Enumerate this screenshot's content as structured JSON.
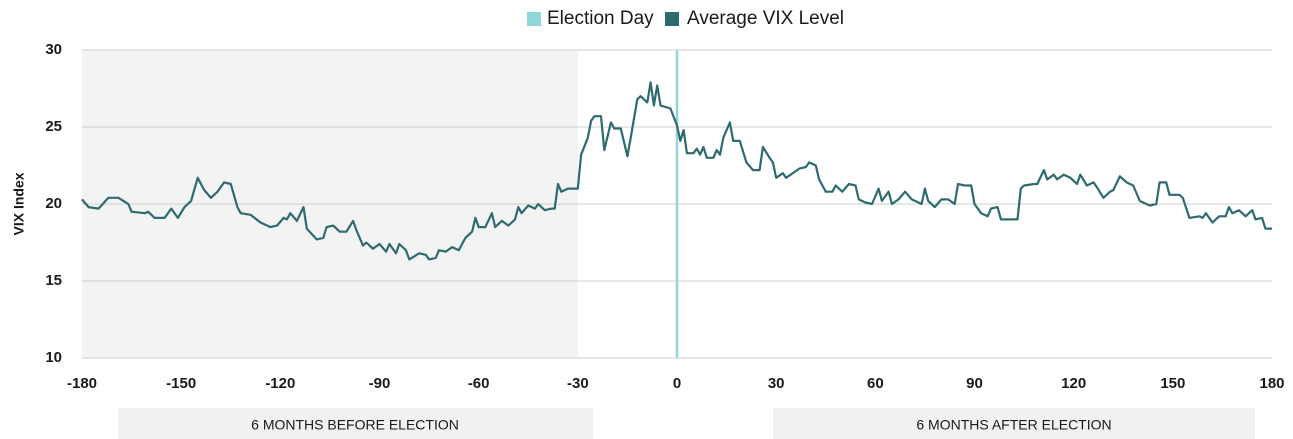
{
  "chart_data": {
    "type": "line",
    "x": [
      -180,
      -178,
      -175,
      -172,
      -169,
      -166,
      -165,
      -161,
      -160,
      -158,
      -155,
      -153,
      -151,
      -149,
      -147,
      -145,
      -143,
      -141,
      -139,
      -137,
      -135,
      -133,
      -132,
      -129,
      -126,
      -123,
      -121,
      -119,
      -118,
      -117,
      -115,
      -113,
      -112,
      -109,
      -107,
      -106,
      -104,
      -102,
      -100,
      -98,
      -97,
      -95,
      -94,
      -92,
      -90,
      -88,
      -87,
      -85,
      -84,
      -82,
      -81,
      -78,
      -76,
      -75,
      -73,
      -72,
      -70,
      -68,
      -66,
      -64,
      -62,
      -61,
      -60,
      -58,
      -56,
      -55,
      -53,
      -51,
      -49,
      -48,
      -47,
      -45,
      -43,
      -42,
      -40,
      -38,
      -37,
      -36,
      -35,
      -33,
      -30,
      -29,
      -27,
      -26,
      -25,
      -23,
      -22,
      -20,
      -19,
      -17,
      -15,
      -14,
      -12,
      -11,
      -9,
      -8,
      -7,
      -6,
      -5,
      -2,
      0,
      1,
      2,
      3,
      5,
      6,
      7,
      8,
      9,
      11,
      12,
      13,
      14,
      15,
      16,
      17,
      19,
      21,
      23,
      25,
      26,
      28,
      29,
      30,
      32,
      33,
      35,
      37,
      39,
      40,
      42,
      43,
      45,
      47,
      48,
      50,
      52,
      54,
      55,
      57,
      59,
      61,
      62,
      64,
      65,
      67,
      69,
      71,
      72,
      74,
      75,
      76,
      78,
      80,
      82,
      84,
      85,
      87,
      89,
      90,
      92,
      94,
      95,
      97,
      98,
      100,
      103,
      104,
      105,
      108,
      109,
      111,
      112,
      114,
      115,
      117,
      119,
      121,
      122,
      124,
      126,
      127,
      129,
      131,
      132,
      134,
      136,
      138,
      140,
      142,
      143,
      145,
      146,
      148,
      149,
      152,
      153,
      155,
      158,
      159,
      160,
      162,
      164,
      166,
      167,
      168,
      170,
      172,
      174,
      175,
      177,
      178,
      180
    ],
    "series": [
      {
        "name": "Average VIX Level",
        "color": "#2e6b6e",
        "values": [
          20.3,
          19.8,
          19.7,
          20.4,
          20.4,
          20.0,
          19.5,
          19.4,
          19.5,
          19.1,
          19.1,
          19.7,
          19.1,
          19.8,
          20.2,
          21.7,
          20.9,
          20.4,
          20.8,
          21.4,
          21.3,
          19.8,
          19.4,
          19.3,
          18.8,
          18.5,
          18.6,
          19.1,
          19.0,
          19.4,
          18.9,
          19.8,
          18.4,
          17.7,
          17.8,
          18.5,
          18.6,
          18.2,
          18.2,
          18.9,
          18.3,
          17.3,
          17.5,
          17.1,
          17.4,
          16.9,
          17.4,
          16.8,
          17.4,
          17.0,
          16.4,
          16.8,
          16.7,
          16.4,
          16.5,
          17.0,
          16.9,
          17.2,
          17.0,
          17.8,
          18.2,
          19.1,
          18.5,
          18.5,
          19.4,
          18.5,
          18.9,
          18.6,
          19.0,
          19.8,
          19.4,
          19.9,
          19.7,
          20.0,
          19.6,
          19.7,
          19.7,
          21.3,
          20.8,
          21.0,
          21.0,
          23.2,
          24.3,
          25.4,
          25.7,
          25.7,
          23.5,
          25.3,
          24.9,
          24.9,
          23.1,
          24.3,
          26.8,
          27.0,
          26.6,
          27.9,
          26.4,
          27.7,
          26.4,
          26.2,
          25.1,
          24.1,
          24.8,
          23.3,
          23.3,
          23.6,
          23.2,
          23.7,
          23.0,
          23.0,
          23.5,
          23.2,
          24.3,
          24.8,
          25.3,
          24.1,
          24.1,
          22.7,
          22.2,
          22.2,
          23.7,
          23.0,
          22.7,
          21.7,
          22.0,
          21.7,
          22.0,
          22.3,
          22.4,
          22.7,
          22.5,
          21.6,
          20.8,
          20.8,
          21.2,
          20.8,
          21.3,
          21.2,
          20.3,
          20.1,
          20.0,
          21.0,
          20.2,
          20.8,
          20.0,
          20.3,
          20.8,
          20.3,
          20.2,
          20.0,
          21.0,
          20.2,
          19.8,
          20.3,
          20.3,
          20.0,
          21.3,
          21.2,
          21.2,
          20.0,
          19.4,
          19.2,
          19.7,
          19.8,
          19.0,
          19.0,
          19.0,
          21.0,
          21.2,
          21.3,
          21.3,
          22.2,
          21.6,
          21.9,
          21.6,
          21.9,
          21.7,
          21.3,
          21.9,
          21.2,
          21.4,
          21.1,
          20.4,
          20.8,
          20.9,
          21.8,
          21.4,
          21.2,
          20.2,
          20.0,
          19.9,
          20.0,
          21.4,
          21.4,
          20.6,
          20.6,
          20.4,
          19.1,
          19.2,
          19.1,
          19.4,
          18.8,
          19.2,
          19.2,
          19.8,
          19.4,
          19.6,
          19.2,
          19.6,
          19.0,
          19.1,
          18.4,
          18.4
        ]
      }
    ],
    "election_day": {
      "name": "Election Day",
      "color": "#8fd6d9",
      "x": 0
    },
    "shaded_xrange": [
      -180,
      -30
    ],
    "shade_color": "#f2f3f2",
    "ylabel": "VIX Index",
    "xlim": [
      -180,
      180
    ],
    "xticks": [
      -180,
      -150,
      -120,
      -90,
      -60,
      -30,
      0,
      30,
      60,
      90,
      120,
      150,
      180
    ],
    "ylim": [
      10,
      30
    ],
    "yticks": [
      10,
      15,
      20,
      25,
      30
    ],
    "grid": true,
    "period_labels": [
      "6 MONTHS BEFORE ELECTION",
      "6 MONTHS AFTER ELECTION"
    ]
  }
}
